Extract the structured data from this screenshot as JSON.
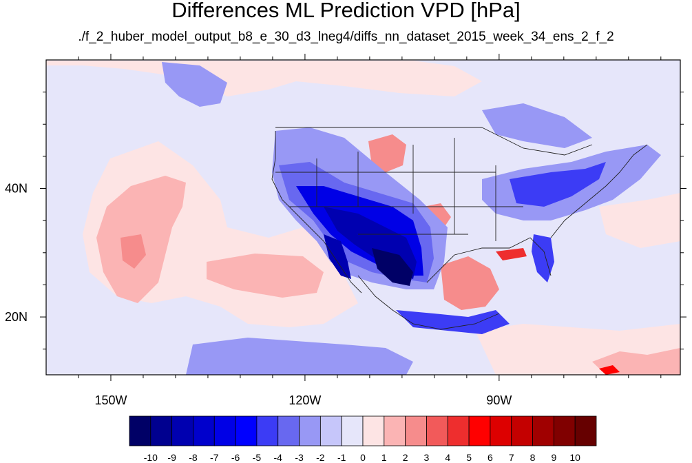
{
  "title": "Differences ML Prediction VPD [hPa]",
  "subtitle": "./f_2_huber_model_output_b8_e_30_d3_lneg4/diffs_nn_dataset_2015_week_34_ens_2_f_2",
  "map": {
    "type": "filled-contour map",
    "lon_range": [
      -160,
      -62
    ],
    "lat_range": [
      11,
      60
    ],
    "lon_labels": [
      {
        "lon": -150,
        "text": "150W"
      },
      {
        "lon": -120,
        "text": "120W"
      },
      {
        "lon": -90,
        "text": "90W"
      }
    ],
    "lat_labels": [
      {
        "lat": 40,
        "text": "40N"
      },
      {
        "lat": 20,
        "text": "20N"
      }
    ]
  },
  "colorbar": {
    "labels": [
      "-10",
      "-9",
      "-8",
      "-7",
      "-6",
      "-5",
      "-4",
      "-3",
      "-2",
      "-1",
      "0",
      "1",
      "2",
      "3",
      "4",
      "5",
      "6",
      "7",
      "8",
      "9",
      "10"
    ],
    "colors": [
      "#000066",
      "#00008f",
      "#0000b0",
      "#0000cc",
      "#0000e6",
      "#0000ff",
      "#3c3cf5",
      "#6868f0",
      "#9898f5",
      "#c6c6fa",
      "#e6e6fa",
      "#fde4e4",
      "#fbb4b4",
      "#f68c8c",
      "#f25a5a",
      "#ee2e2e",
      "#ff0000",
      "#dd0000",
      "#c40000",
      "#a00000",
      "#800000",
      "#660000"
    ]
  }
}
